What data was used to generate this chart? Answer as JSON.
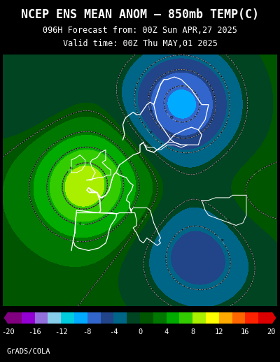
{
  "title": "NCEP ENS MEAN ANOM – 850mb TEMP(C)",
  "subtitle1": "096H Forecast from: 00Z Sun APR,27 2025",
  "subtitle2": "Valid time: 00Z Thu MAY,01 2025",
  "footer": "GrADS/COLA",
  "background_color": "#000000",
  "colorbar_colors": [
    "#800080",
    "#9400D3",
    "#9B59B6",
    "#8888CC",
    "#00CCCC",
    "#00BBFF",
    "#4488FF",
    "#2244AA",
    "#006666",
    "#004400",
    "#006600",
    "#00AA00",
    "#44DD00",
    "#AAEE00",
    "#FFFF00",
    "#FFCC00",
    "#FF8800",
    "#FF5500",
    "#EE2200",
    "#CC0000"
  ],
  "colorbar_ticks": [
    -20,
    -16,
    -12,
    -8,
    -4,
    0,
    4,
    8,
    12,
    16,
    20
  ],
  "map_xlim": [
    -30,
    50
  ],
  "map_ylim": [
    25,
    75
  ],
  "title_fontsize": 12,
  "subtitle_fontsize": 8.5,
  "footer_fontsize": 7.5
}
